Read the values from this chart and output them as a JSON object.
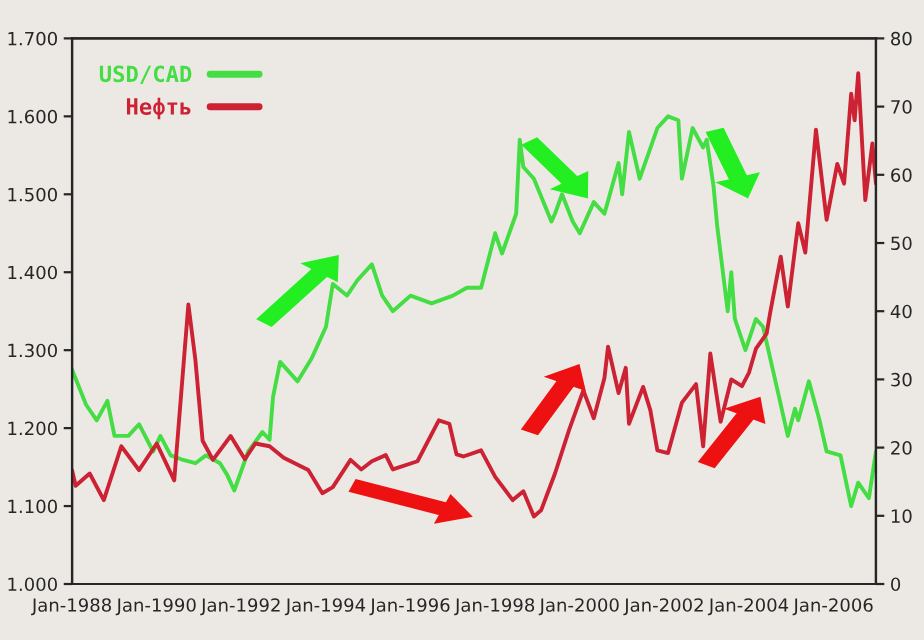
{
  "chart_data": {
    "type": "line",
    "legend": "top left",
    "grid": false,
    "xlim": [
      "1988-01",
      "2007-01"
    ],
    "xticks": [
      {
        "value": "1988-01",
        "label": "Jan-1988"
      },
      {
        "value": "1990-01",
        "label": "Jan-1990"
      },
      {
        "value": "1992-01",
        "label": "Jan-1992"
      },
      {
        "value": "1994-01",
        "label": "Jan-1994"
      },
      {
        "value": "1996-01",
        "label": "Jan-1996"
      },
      {
        "value": "1998-01",
        "label": "Jan-1998"
      },
      {
        "value": "2000-01",
        "label": "Jan-2000"
      },
      {
        "value": "2002-01",
        "label": "Jan-2002"
      },
      {
        "value": "2004-01",
        "label": "Jan-2004"
      },
      {
        "value": "2006-01",
        "label": "Jan-2006"
      }
    ],
    "ylim": [
      1.0,
      1.7
    ],
    "yticks": [
      {
        "value": 1.0,
        "label": "1.000"
      },
      {
        "value": 1.1,
        "label": "1.100"
      },
      {
        "value": 1.2,
        "label": "1.200"
      },
      {
        "value": 1.3,
        "label": "1.300"
      },
      {
        "value": 1.4,
        "label": "1.400"
      },
      {
        "value": 1.5,
        "label": "1.500"
      },
      {
        "value": 1.6,
        "label": "1.600"
      },
      {
        "value": 1.7,
        "label": "1.700"
      }
    ],
    "y2lim": [
      0,
      80
    ],
    "y2ticks": [
      0,
      10,
      20,
      30,
      40,
      50,
      60,
      70,
      80
    ],
    "series": [
      {
        "name": "USD/CAD",
        "color": "#44dd44",
        "x": [
          "1988-01",
          "1988-05",
          "1988-08",
          "1988-11",
          "1989-01",
          "1989-05",
          "1989-08",
          "1989-12",
          "1990-02",
          "1990-05",
          "1990-08",
          "1990-12",
          "1991-03",
          "1991-07",
          "1991-09",
          "1991-11",
          "1992-03",
          "1992-07",
          "1992-09",
          "1992-10",
          "1992-12",
          "1993-05",
          "1993-09",
          "1994-01",
          "1994-03",
          "1994-07",
          "1994-10",
          "1995-02",
          "1995-05",
          "1995-08",
          "1996-01",
          "1996-07",
          "1997-01",
          "1997-05",
          "1997-09",
          "1998-01",
          "1998-03",
          "1998-07",
          "1998-08",
          "1998-09",
          "1998-12",
          "1999-05",
          "1999-06",
          "1999-08",
          "1999-11",
          "2000-01",
          "2000-05",
          "2000-08",
          "2000-12",
          "2001-01",
          "2001-03",
          "2001-06",
          "2001-11",
          "2002-02",
          "2002-05",
          "2002-06",
          "2002-09",
          "2002-12",
          "2003-01",
          "2003-03",
          "2003-04",
          "2003-07",
          "2003-08",
          "2003-09",
          "2003-12",
          "2004-03",
          "2004-05",
          "2004-09",
          "2004-12",
          "2005-02",
          "2005-03",
          "2005-06",
          "2005-09",
          "2005-11",
          "2006-03",
          "2006-06",
          "2006-08",
          "2006-11",
          "2007-01"
        ],
        "values": [
          1.275,
          1.23,
          1.21,
          1.235,
          1.19,
          1.19,
          1.205,
          1.17,
          1.19,
          1.165,
          1.16,
          1.155,
          1.165,
          1.155,
          1.14,
          1.12,
          1.17,
          1.195,
          1.185,
          1.24,
          1.285,
          1.26,
          1.29,
          1.33,
          1.385,
          1.37,
          1.39,
          1.41,
          1.37,
          1.35,
          1.37,
          1.36,
          1.37,
          1.38,
          1.38,
          1.45,
          1.424,
          1.475,
          1.57,
          1.535,
          1.52,
          1.465,
          1.475,
          1.5,
          1.465,
          1.45,
          1.49,
          1.475,
          1.54,
          1.5,
          1.58,
          1.52,
          1.585,
          1.6,
          1.595,
          1.52,
          1.585,
          1.56,
          1.57,
          1.51,
          1.46,
          1.35,
          1.4,
          1.34,
          1.3,
          1.34,
          1.33,
          1.25,
          1.19,
          1.225,
          1.21,
          1.26,
          1.21,
          1.17,
          1.165,
          1.1,
          1.13,
          1.11,
          1.17
        ]
      },
      {
        "name": "Нефть",
        "color": "#cc2233",
        "axis": "y2",
        "x": [
          "1988-01",
          "1988-02",
          "1988-06",
          "1988-10",
          "1989-03",
          "1989-08",
          "1990-01",
          "1990-06",
          "1990-10",
          "1990-12",
          "1991-02",
          "1991-05",
          "1991-10",
          "1992-02",
          "1992-05",
          "1992-09",
          "1993-01",
          "1993-08",
          "1993-12",
          "1994-03",
          "1994-08",
          "1994-11",
          "1995-02",
          "1995-06",
          "1995-08",
          "1996-03",
          "1996-09",
          "1996-12",
          "1997-02",
          "1997-04",
          "1997-09",
          "1998-01",
          "1998-06",
          "1998-09",
          "1998-12",
          "1999-02",
          "1999-06",
          "1999-10",
          "2000-02",
          "2000-05",
          "2000-08",
          "2000-09",
          "2000-12",
          "2001-02",
          "2001-03",
          "2001-07",
          "2001-09",
          "2001-11",
          "2002-02",
          "2002-06",
          "2002-10",
          "2002-12",
          "2003-02",
          "2003-05",
          "2003-08",
          "2003-11",
          "2004-01",
          "2004-03",
          "2004-06",
          "2004-07",
          "2004-10",
          "2004-12",
          "2005-03",
          "2005-05",
          "2005-08",
          "2005-11",
          "2006-02",
          "2006-04",
          "2006-06",
          "2006-07",
          "2006-08",
          "2006-10",
          "2006-12",
          "2007-01"
        ],
        "values": [
          16.7,
          14.4,
          16.2,
          12.3,
          20.2,
          16.7,
          20.6,
          15.2,
          41,
          32.8,
          21,
          18.2,
          21.7,
          18.3,
          20.6,
          20.2,
          18.5,
          16.7,
          13.3,
          14.2,
          18.2,
          16.8,
          18.0,
          18.9,
          16.8,
          18.0,
          24.0,
          23.5,
          19,
          18.7,
          19.6,
          15.7,
          12.3,
          13.6,
          9.9,
          10.8,
          16.2,
          22.6,
          28.4,
          24.3,
          30.2,
          34.8,
          28,
          31.7,
          23.5,
          28.9,
          25.5,
          19.6,
          19.2,
          26.6,
          29.3,
          20.2,
          33.8,
          23.8,
          30,
          29,
          31,
          34.5,
          36.7,
          39.7,
          48,
          40.7,
          52.9,
          48.6,
          66.6,
          53.4,
          61.6,
          58.7,
          71.9,
          68,
          74.9,
          56.3,
          64.6,
          58.7
        ]
      }
    ]
  }
}
